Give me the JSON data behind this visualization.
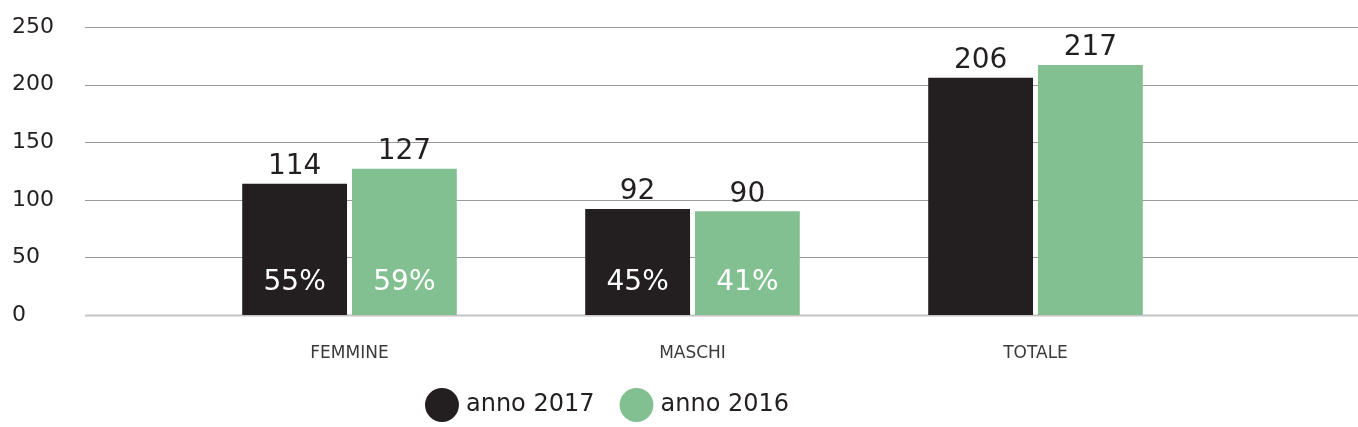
{
  "chart_data": {
    "type": "bar",
    "categories": [
      "FEMMINE",
      "MASCHI",
      "TOTALE"
    ],
    "series": [
      {
        "name": "anno 2017",
        "color": "#231f20",
        "values": [
          114,
          92,
          206
        ]
      },
      {
        "name": "anno 2016",
        "color": "#82c091",
        "values": [
          127,
          90,
          217
        ]
      }
    ],
    "ylim": [
      0,
      250
    ],
    "yticks": [
      0,
      50,
      100,
      150,
      200,
      250
    ],
    "grid": "y",
    "legend": "bottom",
    "data_labels": true,
    "annotations": [
      {
        "text": "55%",
        "x": "FEMMINE",
        "y": 28
      },
      {
        "text": "59%",
        "x": "FEMMINE",
        "y": 28
      },
      {
        "text": "45%",
        "x": "MASCHI",
        "y": 28
      },
      {
        "text": "41%",
        "x": "MASCHI",
        "y": 28
      }
    ]
  }
}
